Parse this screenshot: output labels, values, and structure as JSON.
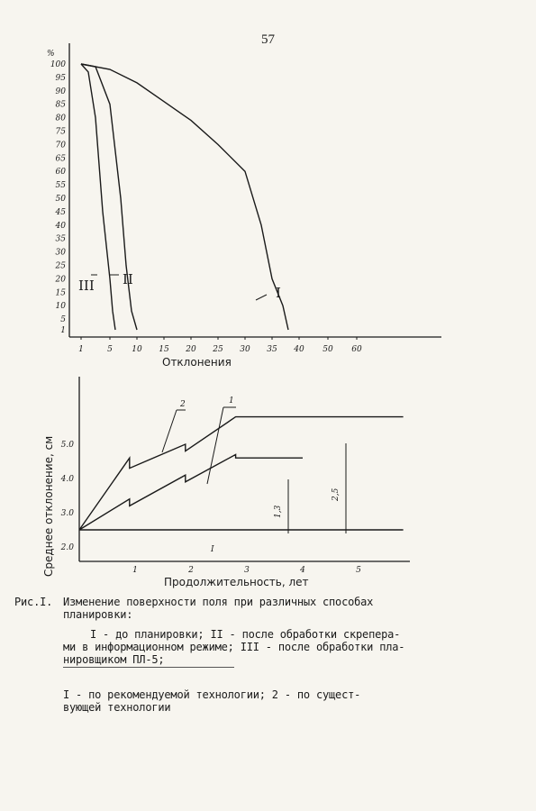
{
  "page_number": "57",
  "caption": {
    "prefix": "Рис.I.",
    "line1": "Изменение поверхности поля при различных способах",
    "line2": "планировки:",
    "line3": "I - до планировки; II - после обработки скрепера-",
    "line4": "ми в информационном режиме; III - после обработки пла-",
    "line5": "нировщиком ПЛ-5;",
    "line6": "I - по рекомендуемой технологии; 2 - по сущест-",
    "line7": "вующей технологии"
  },
  "chart_data": [
    {
      "type": "line",
      "title": "",
      "xlabel": "Отклонения",
      "ylabel": "%",
      "x_ticks": [
        "1",
        "5",
        "10",
        "15",
        "20",
        "25",
        "30",
        "35",
        "40",
        "50",
        "60"
      ],
      "y_ticks": [
        "100",
        "95",
        "90",
        "85",
        "80",
        "75",
        "70",
        "65",
        "60",
        "55",
        "50",
        "45",
        "40",
        "35",
        "30",
        "25",
        "20",
        "15",
        "10",
        "5",
        "1"
      ],
      "series": [
        {
          "name": "I",
          "points": [
            [
              1,
              100
            ],
            [
              5,
              98
            ],
            [
              10,
              93
            ],
            [
              15,
              86
            ],
            [
              20,
              79
            ],
            [
              25,
              70
            ],
            [
              30,
              60
            ],
            [
              33,
              40
            ],
            [
              35,
              20
            ],
            [
              37,
              10
            ],
            [
              38,
              1
            ]
          ]
        },
        {
          "name": "II",
          "points": [
            [
              1,
              100
            ],
            [
              3,
              99
            ],
            [
              5,
              85
            ],
            [
              7,
              50
            ],
            [
              8,
              25
            ],
            [
              9,
              8
            ],
            [
              10,
              1
            ]
          ]
        },
        {
          "name": "III",
          "points": [
            [
              1,
              100
            ],
            [
              2,
              97
            ],
            [
              3,
              80
            ],
            [
              4,
              45
            ],
            [
              5,
              20
            ],
            [
              5.5,
              8
            ],
            [
              6,
              1
            ]
          ]
        }
      ]
    },
    {
      "type": "line",
      "title": "",
      "xlabel": "Продолжительность, лет",
      "ylabel": "Среднее отклонение, см",
      "x_ticks": [
        "1",
        "2",
        "3",
        "4",
        "5"
      ],
      "y_ticks": [
        "2.0",
        "3.0",
        "4.0",
        "5.0"
      ],
      "annotations": [
        "2,5",
        "1,3"
      ],
      "series": [
        {
          "name": "2",
          "points": [
            [
              0,
              2.5
            ],
            [
              0.9,
              4.6
            ],
            [
              0.9,
              4.3
            ],
            [
              1.9,
              5.0
            ],
            [
              1.9,
              4.8
            ],
            [
              2.8,
              5.8
            ],
            [
              5.8,
              5.8
            ]
          ]
        },
        {
          "name": "1",
          "points": [
            [
              0,
              2.5
            ],
            [
              0.9,
              3.4
            ],
            [
              0.9,
              3.2
            ],
            [
              1.9,
              4.1
            ],
            [
              1.9,
              3.9
            ],
            [
              2.8,
              4.7
            ],
            [
              2.8,
              4.6
            ],
            [
              4.0,
              4.6
            ]
          ]
        },
        {
          "name": "I",
          "points": [
            [
              0,
              2.5
            ],
            [
              5.8,
              2.5
            ]
          ]
        }
      ]
    }
  ]
}
